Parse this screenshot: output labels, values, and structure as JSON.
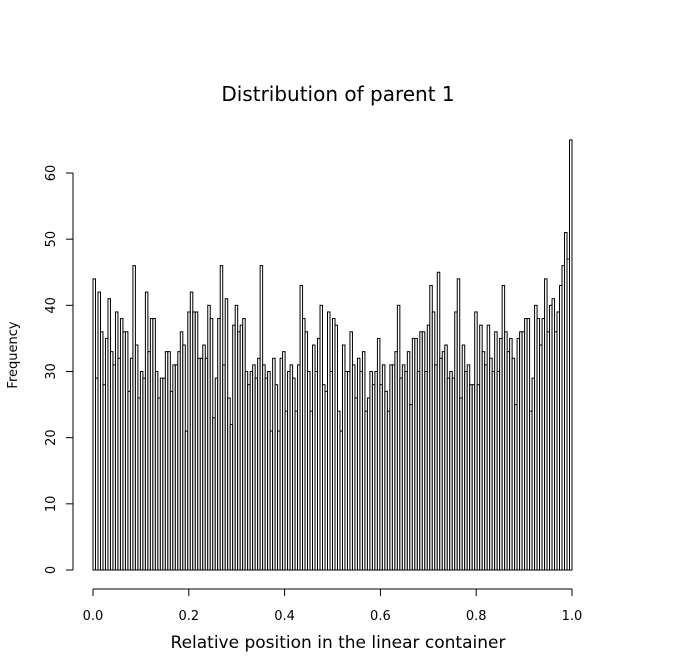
{
  "chart_data": {
    "type": "bar",
    "title": "Distribution of parent 1",
    "xlabel": "Relative position in the linear container",
    "ylabel": "Frequency",
    "xlim": [
      0,
      1
    ],
    "ylim": [
      0,
      65
    ],
    "x_ticks": [
      "0.0",
      "0.2",
      "0.4",
      "0.6",
      "0.8",
      "1.0"
    ],
    "y_ticks": [
      "0",
      "10",
      "20",
      "30",
      "40",
      "50",
      "60"
    ],
    "grid": false,
    "bin_width": 0.005,
    "values": [
      44,
      29,
      42,
      36,
      28,
      35,
      41,
      33,
      31,
      39,
      32,
      38,
      36,
      36,
      27,
      32,
      46,
      34,
      26,
      30,
      29,
      42,
      33,
      38,
      38,
      30,
      26,
      29,
      29,
      33,
      33,
      27,
      31,
      31,
      33,
      36,
      34,
      21,
      39,
      42,
      39,
      39,
      32,
      32,
      34,
      32,
      40,
      38,
      23,
      29,
      38,
      46,
      31,
      41,
      26,
      22,
      37,
      40,
      36,
      37,
      38,
      30,
      28,
      30,
      31,
      29,
      32,
      46,
      31,
      29,
      30,
      21,
      32,
      28,
      21,
      32,
      33,
      24,
      30,
      31,
      29,
      24,
      31,
      43,
      38,
      36,
      30,
      24,
      34,
      30,
      35,
      40,
      28,
      27,
      39,
      30,
      38,
      37,
      24,
      21,
      34,
      30,
      30,
      36,
      31,
      26,
      32,
      30,
      33,
      24,
      26,
      30,
      28,
      30,
      35,
      28,
      31,
      27,
      24,
      31,
      31,
      33,
      40,
      29,
      31,
      30,
      33,
      25,
      35,
      35,
      30,
      36,
      36,
      30,
      37,
      43,
      39,
      31,
      45,
      32,
      33,
      34,
      29,
      30,
      29,
      39,
      44,
      26,
      34,
      30,
      31,
      28,
      28,
      39,
      28,
      37,
      33,
      31,
      37,
      32,
      30,
      36,
      30,
      35,
      43,
      36,
      33,
      35,
      32,
      25,
      35,
      36,
      36,
      38,
      38,
      24,
      29,
      40,
      38,
      34,
      38,
      44,
      36,
      40,
      41,
      36,
      39,
      43,
      46,
      51,
      47,
      65
    ]
  }
}
